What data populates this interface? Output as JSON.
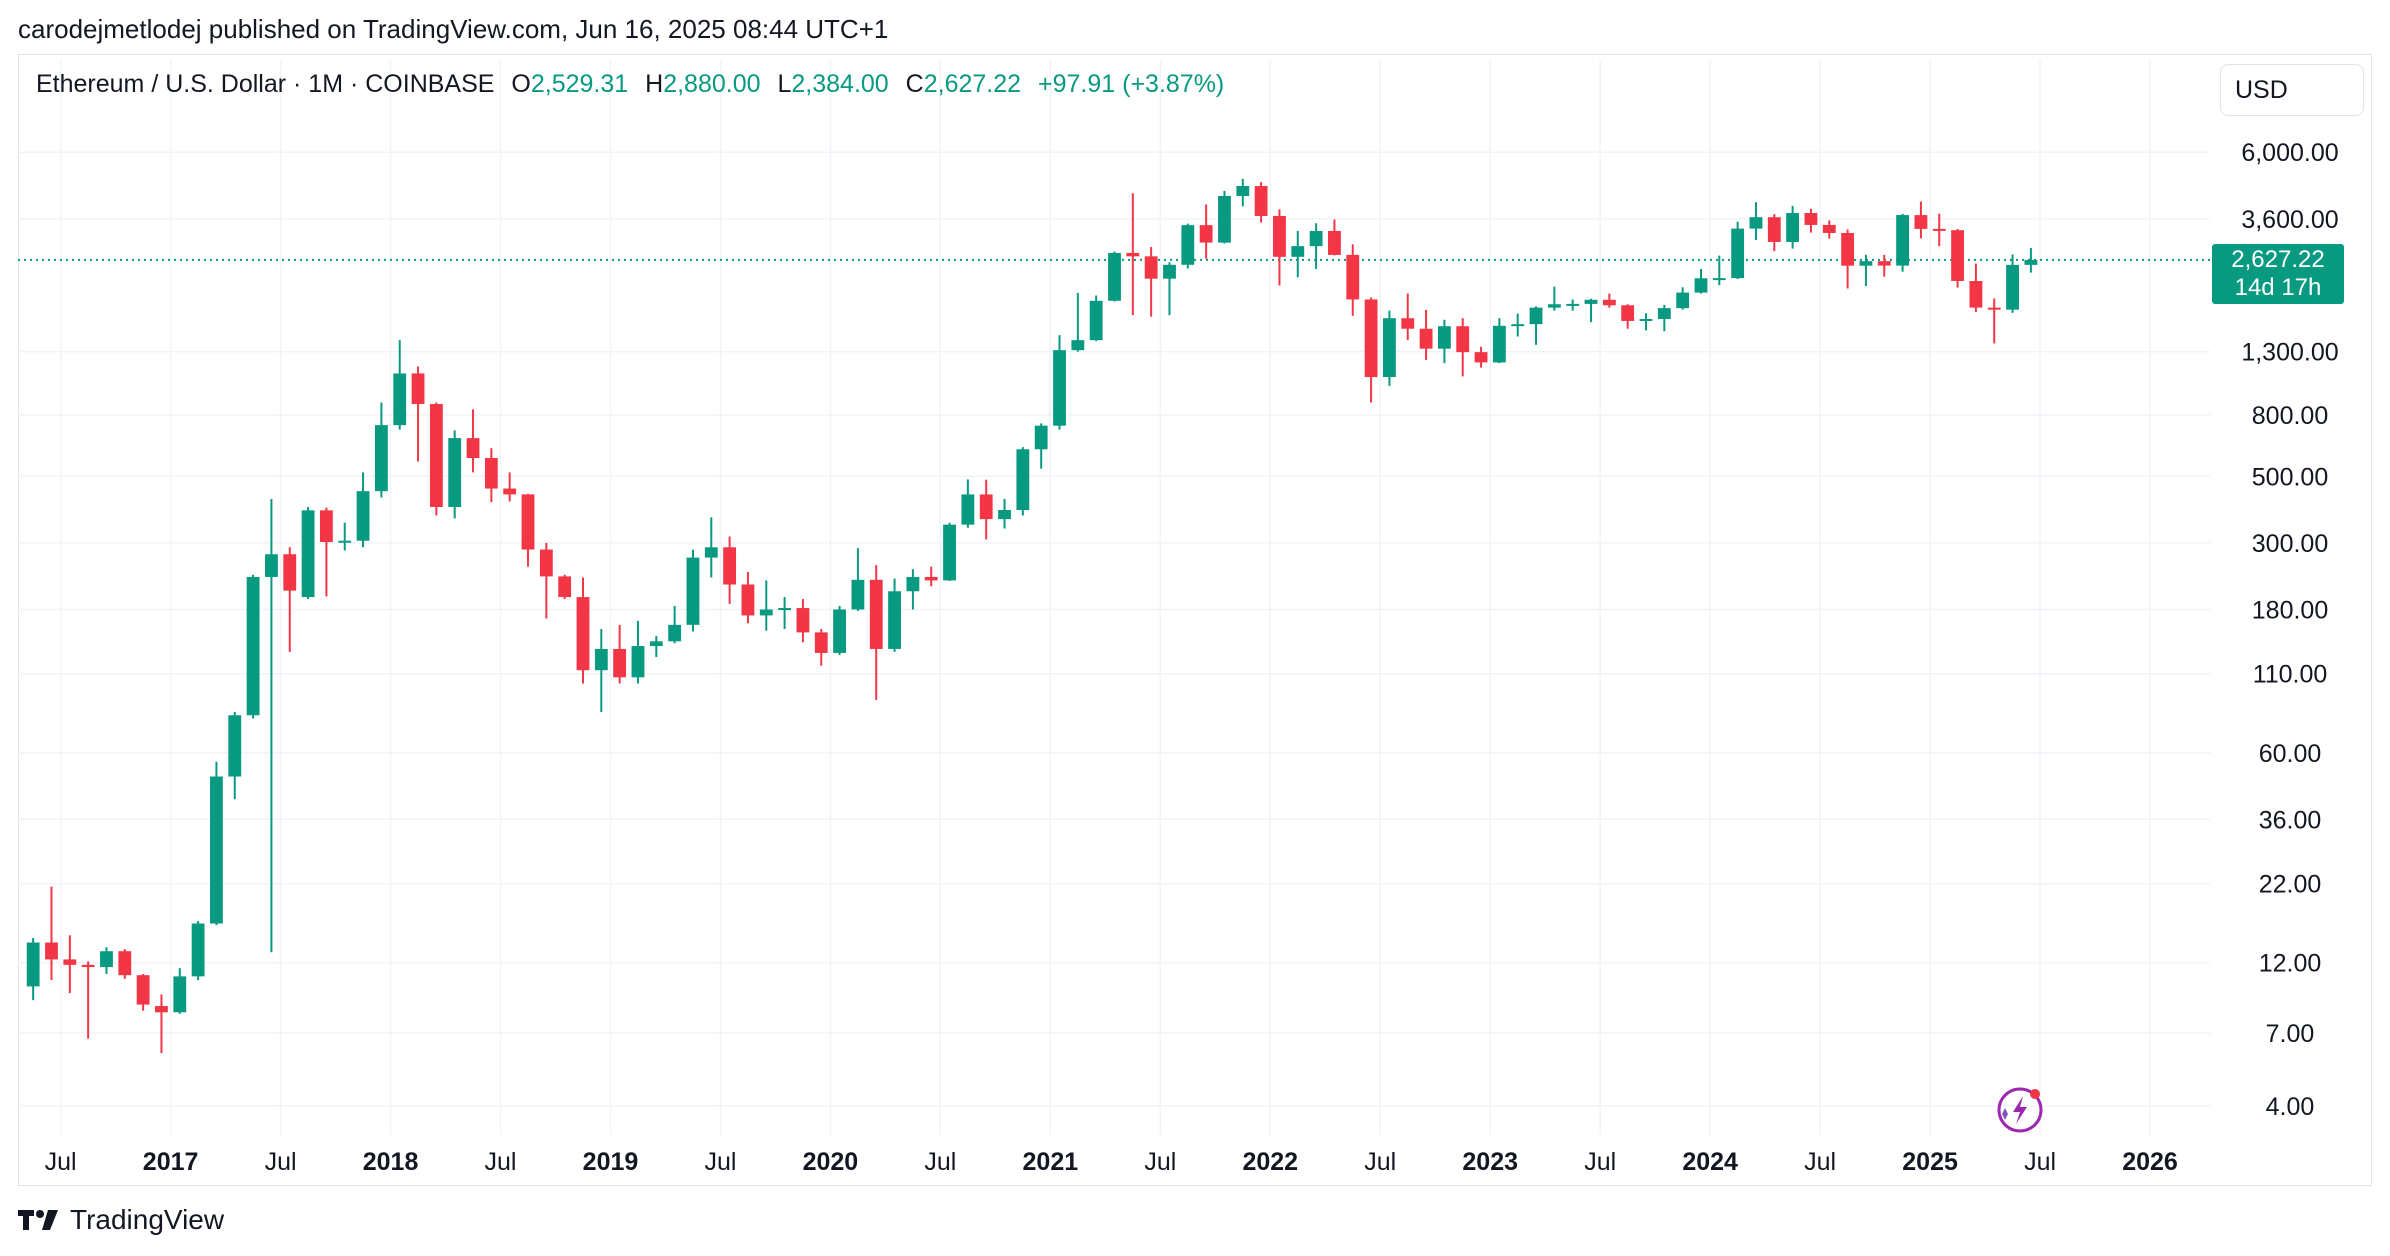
{
  "header": {
    "published_line": "carodejmetlodej published on TradingView.com, Jun 16, 2025 08:44 UTC+1"
  },
  "legend": {
    "symbol": "Ethereum / U.S. Dollar · 1M · COINBASE",
    "open_label": "O",
    "open_value": "2,529.31",
    "high_label": "H",
    "high_value": "2,880.00",
    "low_label": "L",
    "low_value": "2,384.00",
    "close_label": "C",
    "close_value": "2,627.22",
    "change": "+97.91 (+3.87%)"
  },
  "currency": "USD",
  "last_price": {
    "value": "2,627.22",
    "countdown": "14d 17h"
  },
  "footer": {
    "brand": "TradingView"
  },
  "colors": {
    "up": "#089981",
    "down": "#f23645",
    "grid": "#f0f3fa",
    "text": "#131722"
  },
  "icons": [
    "tradingview-logo-icon",
    "spark-assistant-icon"
  ],
  "chart_data": {
    "type": "candlestick",
    "scale": "log",
    "interval": "1M",
    "ylim": [
      3.2,
      7800
    ],
    "y_ticks": [
      6000,
      3600,
      1300,
      800,
      500,
      300,
      180,
      110,
      60,
      36,
      22,
      12,
      7,
      4
    ],
    "y_tick_labels": [
      "6,000.00",
      "3,600.00",
      "1,300.00",
      "800.00",
      "500.00",
      "300.00",
      "180.00",
      "110.00",
      "60.00",
      "36.00",
      "22.00",
      "12.00",
      "7.00",
      "4.00"
    ],
    "x_start": "2016-05",
    "x_end": "2026-03",
    "x_ticks": [
      {
        "date": "2016-07",
        "label": "Jul",
        "bold": false
      },
      {
        "date": "2017-01",
        "label": "2017",
        "bold": true
      },
      {
        "date": "2017-07",
        "label": "Jul",
        "bold": false
      },
      {
        "date": "2018-01",
        "label": "2018",
        "bold": true
      },
      {
        "date": "2018-07",
        "label": "Jul",
        "bold": false
      },
      {
        "date": "2019-01",
        "label": "2019",
        "bold": true
      },
      {
        "date": "2019-07",
        "label": "Jul",
        "bold": false
      },
      {
        "date": "2020-01",
        "label": "2020",
        "bold": true
      },
      {
        "date": "2020-07",
        "label": "Jul",
        "bold": false
      },
      {
        "date": "2021-01",
        "label": "2021",
        "bold": true
      },
      {
        "date": "2021-07",
        "label": "Jul",
        "bold": false
      },
      {
        "date": "2022-01",
        "label": "2022",
        "bold": true
      },
      {
        "date": "2022-07",
        "label": "Jul",
        "bold": false
      },
      {
        "date": "2023-01",
        "label": "2023",
        "bold": true
      },
      {
        "date": "2023-07",
        "label": "Jul",
        "bold": false
      },
      {
        "date": "2024-01",
        "label": "2024",
        "bold": true
      },
      {
        "date": "2024-07",
        "label": "Jul",
        "bold": false
      },
      {
        "date": "2025-01",
        "label": "2025",
        "bold": true
      },
      {
        "date": "2025-07",
        "label": "Jul",
        "bold": false
      },
      {
        "date": "2026-01",
        "label": "2026",
        "bold": true
      }
    ],
    "last_close": 2627.22,
    "candles": [
      {
        "t": "2016-05",
        "o": 10.0,
        "h": 14.5,
        "l": 9.0,
        "c": 14.0
      },
      {
        "t": "2016-06",
        "o": 14.0,
        "h": 21.5,
        "l": 10.5,
        "c": 12.3
      },
      {
        "t": "2016-07",
        "o": 12.3,
        "h": 14.8,
        "l": 9.5,
        "c": 11.8
      },
      {
        "t": "2016-08",
        "o": 11.8,
        "h": 12.1,
        "l": 6.7,
        "c": 11.6
      },
      {
        "t": "2016-09",
        "o": 11.6,
        "h": 13.5,
        "l": 11.0,
        "c": 13.1
      },
      {
        "t": "2016-10",
        "o": 13.1,
        "h": 13.3,
        "l": 10.6,
        "c": 10.9
      },
      {
        "t": "2016-11",
        "o": 10.9,
        "h": 11.0,
        "l": 8.3,
        "c": 8.7
      },
      {
        "t": "2016-12",
        "o": 8.6,
        "h": 9.4,
        "l": 6.0,
        "c": 8.2
      },
      {
        "t": "2017-01",
        "o": 8.2,
        "h": 11.5,
        "l": 8.1,
        "c": 10.8
      },
      {
        "t": "2017-02",
        "o": 10.8,
        "h": 16.5,
        "l": 10.5,
        "c": 16.2
      },
      {
        "t": "2017-03",
        "o": 16.2,
        "h": 56.0,
        "l": 16.0,
        "c": 50.0
      },
      {
        "t": "2017-04",
        "o": 50.0,
        "h": 82.0,
        "l": 42.0,
        "c": 80.0
      },
      {
        "t": "2017-05",
        "o": 80.0,
        "h": 235.0,
        "l": 78.0,
        "c": 231.0
      },
      {
        "t": "2017-06",
        "o": 231.0,
        "h": 420.0,
        "l": 13.0,
        "c": 275.0
      },
      {
        "t": "2017-07",
        "o": 275.0,
        "h": 290.0,
        "l": 130.0,
        "c": 208.0
      },
      {
        "t": "2017-08",
        "o": 198.0,
        "h": 395.0,
        "l": 195.0,
        "c": 385.0
      },
      {
        "t": "2017-09",
        "o": 385.0,
        "h": 393.0,
        "l": 199.0,
        "c": 302.0
      },
      {
        "t": "2017-10",
        "o": 302.0,
        "h": 350.0,
        "l": 283.0,
        "c": 305.0
      },
      {
        "t": "2017-11",
        "o": 305.0,
        "h": 515.0,
        "l": 290.0,
        "c": 446.0
      },
      {
        "t": "2017-12",
        "o": 446.0,
        "h": 880.0,
        "l": 425.0,
        "c": 740.0
      },
      {
        "t": "2018-01",
        "o": 740.0,
        "h": 1420.0,
        "l": 715.0,
        "c": 1100.0
      },
      {
        "t": "2018-02",
        "o": 1100.0,
        "h": 1160.0,
        "l": 560.0,
        "c": 870.0
      },
      {
        "t": "2018-03",
        "o": 870.0,
        "h": 880.0,
        "l": 370.0,
        "c": 395.0
      },
      {
        "t": "2018-04",
        "o": 395.0,
        "h": 710.0,
        "l": 362.0,
        "c": 670.0
      },
      {
        "t": "2018-05",
        "o": 670.0,
        "h": 835.0,
        "l": 515.0,
        "c": 575.0
      },
      {
        "t": "2018-06",
        "o": 575.0,
        "h": 620.0,
        "l": 410.0,
        "c": 455.0
      },
      {
        "t": "2018-07",
        "o": 455.0,
        "h": 515.0,
        "l": 412.0,
        "c": 435.0
      },
      {
        "t": "2018-08",
        "o": 435.0,
        "h": 437.0,
        "l": 250.0,
        "c": 285.0
      },
      {
        "t": "2018-09",
        "o": 285.0,
        "h": 300.0,
        "l": 168.0,
        "c": 232.0
      },
      {
        "t": "2018-10",
        "o": 232.0,
        "h": 235.0,
        "l": 195.0,
        "c": 198.0
      },
      {
        "t": "2018-11",
        "o": 198.0,
        "h": 230.0,
        "l": 102.0,
        "c": 113.0
      },
      {
        "t": "2018-12",
        "o": 113.0,
        "h": 155.0,
        "l": 82.0,
        "c": 133.0
      },
      {
        "t": "2019-01",
        "o": 133.0,
        "h": 160.0,
        "l": 102.0,
        "c": 107.0
      },
      {
        "t": "2019-02",
        "o": 107.0,
        "h": 165.0,
        "l": 102.0,
        "c": 136.0
      },
      {
        "t": "2019-03",
        "o": 136.0,
        "h": 147.0,
        "l": 125.0,
        "c": 141.0
      },
      {
        "t": "2019-04",
        "o": 141.0,
        "h": 185.0,
        "l": 139.0,
        "c": 160.0
      },
      {
        "t": "2019-05",
        "o": 160.0,
        "h": 285.0,
        "l": 152.0,
        "c": 268.0
      },
      {
        "t": "2019-06",
        "o": 268.0,
        "h": 365.0,
        "l": 230.0,
        "c": 290.0
      },
      {
        "t": "2019-07",
        "o": 290.0,
        "h": 315.0,
        "l": 188.0,
        "c": 218.0
      },
      {
        "t": "2019-08",
        "o": 218.0,
        "h": 240.0,
        "l": 162.0,
        "c": 172.0
      },
      {
        "t": "2019-09",
        "o": 172.0,
        "h": 225.0,
        "l": 153.0,
        "c": 180.0
      },
      {
        "t": "2019-10",
        "o": 180.0,
        "h": 198.0,
        "l": 155.0,
        "c": 182.0
      },
      {
        "t": "2019-11",
        "o": 182.0,
        "h": 195.0,
        "l": 140.0,
        "c": 151.0
      },
      {
        "t": "2019-12",
        "o": 151.0,
        "h": 155.0,
        "l": 117.0,
        "c": 129.0
      },
      {
        "t": "2020-01",
        "o": 129.0,
        "h": 185.0,
        "l": 127.0,
        "c": 180.0
      },
      {
        "t": "2020-02",
        "o": 180.0,
        "h": 288.0,
        "l": 178.0,
        "c": 226.0
      },
      {
        "t": "2020-03",
        "o": 226.0,
        "h": 253.0,
        "l": 90.0,
        "c": 133.0
      },
      {
        "t": "2020-04",
        "o": 133.0,
        "h": 228.0,
        "l": 130.0,
        "c": 207.0
      },
      {
        "t": "2020-05",
        "o": 207.0,
        "h": 245.0,
        "l": 180.0,
        "c": 231.0
      },
      {
        "t": "2020-06",
        "o": 231.0,
        "h": 250.0,
        "l": 215.0,
        "c": 225.0
      },
      {
        "t": "2020-07",
        "o": 225.0,
        "h": 350.0,
        "l": 224.0,
        "c": 345.0
      },
      {
        "t": "2020-08",
        "o": 345.0,
        "h": 488.0,
        "l": 337.0,
        "c": 435.0
      },
      {
        "t": "2020-09",
        "o": 435.0,
        "h": 487.0,
        "l": 308.0,
        "c": 360.0
      },
      {
        "t": "2020-10",
        "o": 360.0,
        "h": 420.0,
        "l": 335.0,
        "c": 386.0
      },
      {
        "t": "2020-11",
        "o": 386.0,
        "h": 625.0,
        "l": 370.0,
        "c": 615.0
      },
      {
        "t": "2020-12",
        "o": 615.0,
        "h": 750.0,
        "l": 530.0,
        "c": 737.0
      },
      {
        "t": "2021-01",
        "o": 737.0,
        "h": 1475.0,
        "l": 715.0,
        "c": 1315.0
      },
      {
        "t": "2021-02",
        "o": 1315.0,
        "h": 2040.0,
        "l": 1300.0,
        "c": 1420.0
      },
      {
        "t": "2021-03",
        "o": 1420.0,
        "h": 2000.0,
        "l": 1410.0,
        "c": 1920.0
      },
      {
        "t": "2021-04",
        "o": 1920.0,
        "h": 2800.0,
        "l": 1910.0,
        "c": 2772.0
      },
      {
        "t": "2021-05",
        "o": 2772.0,
        "h": 4380.0,
        "l": 1720.0,
        "c": 2700.0
      },
      {
        "t": "2021-06",
        "o": 2700.0,
        "h": 2900.0,
        "l": 1700.0,
        "c": 2275.0
      },
      {
        "t": "2021-07",
        "o": 2275.0,
        "h": 2580.0,
        "l": 1720.0,
        "c": 2530.0
      },
      {
        "t": "2021-08",
        "o": 2530.0,
        "h": 3470.0,
        "l": 2460.0,
        "c": 3430.0
      },
      {
        "t": "2021-09",
        "o": 3430.0,
        "h": 4020.0,
        "l": 2650.0,
        "c": 3000.0
      },
      {
        "t": "2021-10",
        "o": 3000.0,
        "h": 4460.0,
        "l": 2980.0,
        "c": 4290.0
      },
      {
        "t": "2021-11",
        "o": 4290.0,
        "h": 4890.0,
        "l": 3960.0,
        "c": 4630.0
      },
      {
        "t": "2021-12",
        "o": 4630.0,
        "h": 4770.0,
        "l": 3500.0,
        "c": 3680.0
      },
      {
        "t": "2022-01",
        "o": 3680.0,
        "h": 3870.0,
        "l": 2160.0,
        "c": 2690.0
      },
      {
        "t": "2022-02",
        "o": 2690.0,
        "h": 3280.0,
        "l": 2300.0,
        "c": 2920.0
      },
      {
        "t": "2022-03",
        "o": 2920.0,
        "h": 3480.0,
        "l": 2450.0,
        "c": 3280.0
      },
      {
        "t": "2022-04",
        "o": 3280.0,
        "h": 3580.0,
        "l": 2720.0,
        "c": 2730.0
      },
      {
        "t": "2022-05",
        "o": 2730.0,
        "h": 2960.0,
        "l": 1710.0,
        "c": 1940.0
      },
      {
        "t": "2022-06",
        "o": 1940.0,
        "h": 1970.0,
        "l": 880.0,
        "c": 1070.0
      },
      {
        "t": "2022-07",
        "o": 1070.0,
        "h": 1780.0,
        "l": 1000.0,
        "c": 1680.0
      },
      {
        "t": "2022-08",
        "o": 1680.0,
        "h": 2030.0,
        "l": 1420.0,
        "c": 1550.0
      },
      {
        "t": "2022-09",
        "o": 1550.0,
        "h": 1790.0,
        "l": 1220.0,
        "c": 1330.0
      },
      {
        "t": "2022-10",
        "o": 1330.0,
        "h": 1660.0,
        "l": 1190.0,
        "c": 1580.0
      },
      {
        "t": "2022-11",
        "o": 1580.0,
        "h": 1680.0,
        "l": 1075.0,
        "c": 1295.0
      },
      {
        "t": "2022-12",
        "o": 1295.0,
        "h": 1350.0,
        "l": 1150.0,
        "c": 1197.0
      },
      {
        "t": "2023-01",
        "o": 1197.0,
        "h": 1680.0,
        "l": 1190.0,
        "c": 1585.0
      },
      {
        "t": "2023-02",
        "o": 1585.0,
        "h": 1740.0,
        "l": 1460.0,
        "c": 1605.0
      },
      {
        "t": "2023-03",
        "o": 1605.0,
        "h": 1840.0,
        "l": 1370.0,
        "c": 1822.0
      },
      {
        "t": "2023-04",
        "o": 1822.0,
        "h": 2140.0,
        "l": 1780.0,
        "c": 1870.0
      },
      {
        "t": "2023-05",
        "o": 1870.0,
        "h": 1940.0,
        "l": 1780.0,
        "c": 1875.0
      },
      {
        "t": "2023-06",
        "o": 1875.0,
        "h": 1950.0,
        "l": 1630.0,
        "c": 1935.0
      },
      {
        "t": "2023-07",
        "o": 1935.0,
        "h": 2030.0,
        "l": 1820.0,
        "c": 1855.0
      },
      {
        "t": "2023-08",
        "o": 1855.0,
        "h": 1870.0,
        "l": 1550.0,
        "c": 1645.0
      },
      {
        "t": "2023-09",
        "o": 1645.0,
        "h": 1745.0,
        "l": 1530.0,
        "c": 1670.0
      },
      {
        "t": "2023-10",
        "o": 1670.0,
        "h": 1860.0,
        "l": 1520.0,
        "c": 1815.0
      },
      {
        "t": "2023-11",
        "o": 1815.0,
        "h": 2130.0,
        "l": 1795.0,
        "c": 2045.0
      },
      {
        "t": "2023-12",
        "o": 2045.0,
        "h": 2450.0,
        "l": 2030.0,
        "c": 2282.0
      },
      {
        "t": "2024-01",
        "o": 2282.0,
        "h": 2715.0,
        "l": 2165.0,
        "c": 2285.0
      },
      {
        "t": "2024-02",
        "o": 2285.0,
        "h": 3520.0,
        "l": 2270.0,
        "c": 3340.0
      },
      {
        "t": "2024-03",
        "o": 3340.0,
        "h": 4090.0,
        "l": 3060.0,
        "c": 3645.0
      },
      {
        "t": "2024-04",
        "o": 3645.0,
        "h": 3730.0,
        "l": 2810.0,
        "c": 3015.0
      },
      {
        "t": "2024-05",
        "o": 3015.0,
        "h": 3975.0,
        "l": 2865.0,
        "c": 3765.0
      },
      {
        "t": "2024-06",
        "o": 3765.0,
        "h": 3890.0,
        "l": 3240.0,
        "c": 3435.0
      },
      {
        "t": "2024-07",
        "o": 3435.0,
        "h": 3560.0,
        "l": 3090.0,
        "c": 3230.0
      },
      {
        "t": "2024-08",
        "o": 3230.0,
        "h": 3320.0,
        "l": 2110.0,
        "c": 2513.0
      },
      {
        "t": "2024-09",
        "o": 2513.0,
        "h": 2730.0,
        "l": 2150.0,
        "c": 2602.0
      },
      {
        "t": "2024-10",
        "o": 2602.0,
        "h": 2730.0,
        "l": 2310.0,
        "c": 2515.0
      },
      {
        "t": "2024-11",
        "o": 2515.0,
        "h": 3740.0,
        "l": 2400.0,
        "c": 3705.0
      },
      {
        "t": "2024-12",
        "o": 3705.0,
        "h": 4110.0,
        "l": 3100.0,
        "c": 3333.0
      },
      {
        "t": "2025-01",
        "o": 3333.0,
        "h": 3745.0,
        "l": 2920.0,
        "c": 3300.0
      },
      {
        "t": "2025-02",
        "o": 3300.0,
        "h": 3330.0,
        "l": 2125.0,
        "c": 2235.0
      },
      {
        "t": "2025-03",
        "o": 2235.0,
        "h": 2555.0,
        "l": 1760.0,
        "c": 1822.0
      },
      {
        "t": "2025-04",
        "o": 1822.0,
        "h": 1955.0,
        "l": 1385.0,
        "c": 1794.0
      },
      {
        "t": "2025-05",
        "o": 1794.0,
        "h": 2740.0,
        "l": 1750.0,
        "c": 2529.0
      },
      {
        "t": "2025-06",
        "o": 2529.31,
        "h": 2880.0,
        "l": 2384.0,
        "c": 2627.22
      }
    ]
  }
}
